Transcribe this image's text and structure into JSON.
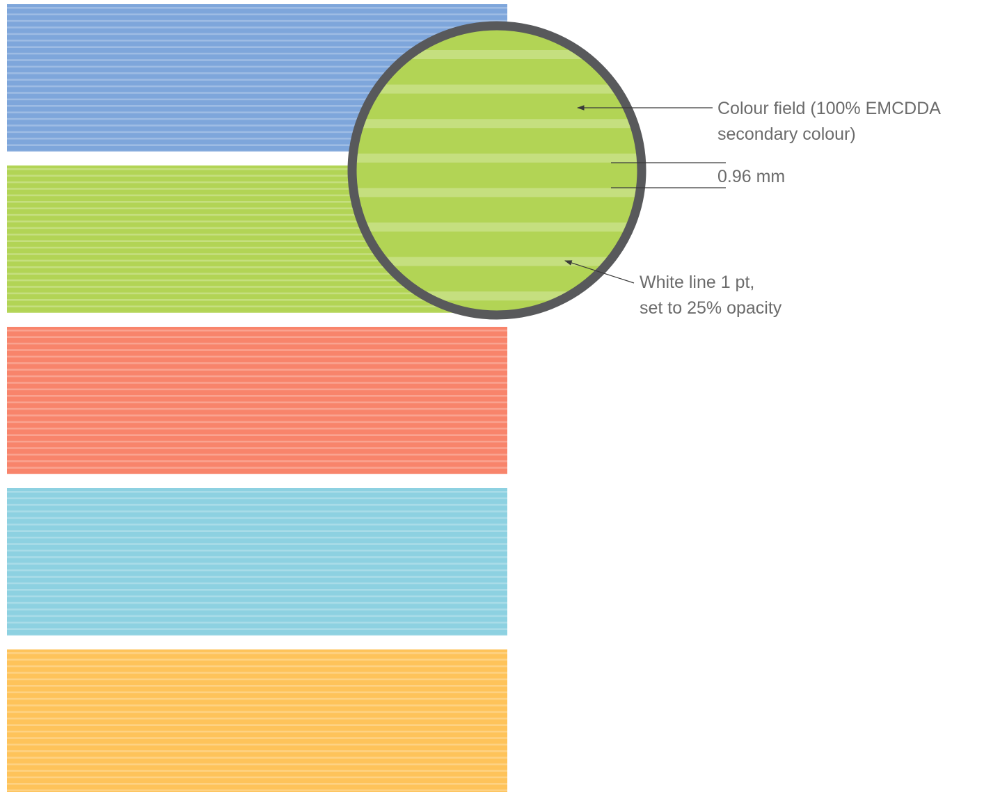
{
  "swatches": [
    {
      "name": "blue",
      "color": "#7ea6db"
    },
    {
      "name": "green",
      "color": "#b2d455"
    },
    {
      "name": "red",
      "color": "#f8846b"
    },
    {
      "name": "cyan",
      "color": "#8dd1e1"
    },
    {
      "name": "orange",
      "color": "#fec35a"
    }
  ],
  "line_color": "#ffffff",
  "line_opacity": 0.25,
  "magnifier": {
    "fill": "#b2d455",
    "ring_color": "#58595b"
  },
  "annotations": {
    "colour_field": {
      "line1": "Colour field (100% EMCDDA",
      "line2": "secondary colour)"
    },
    "measure": "0.96 mm",
    "white_line": {
      "line1": "White line 1 pt,",
      "line2": "set to 25% opacity"
    }
  }
}
